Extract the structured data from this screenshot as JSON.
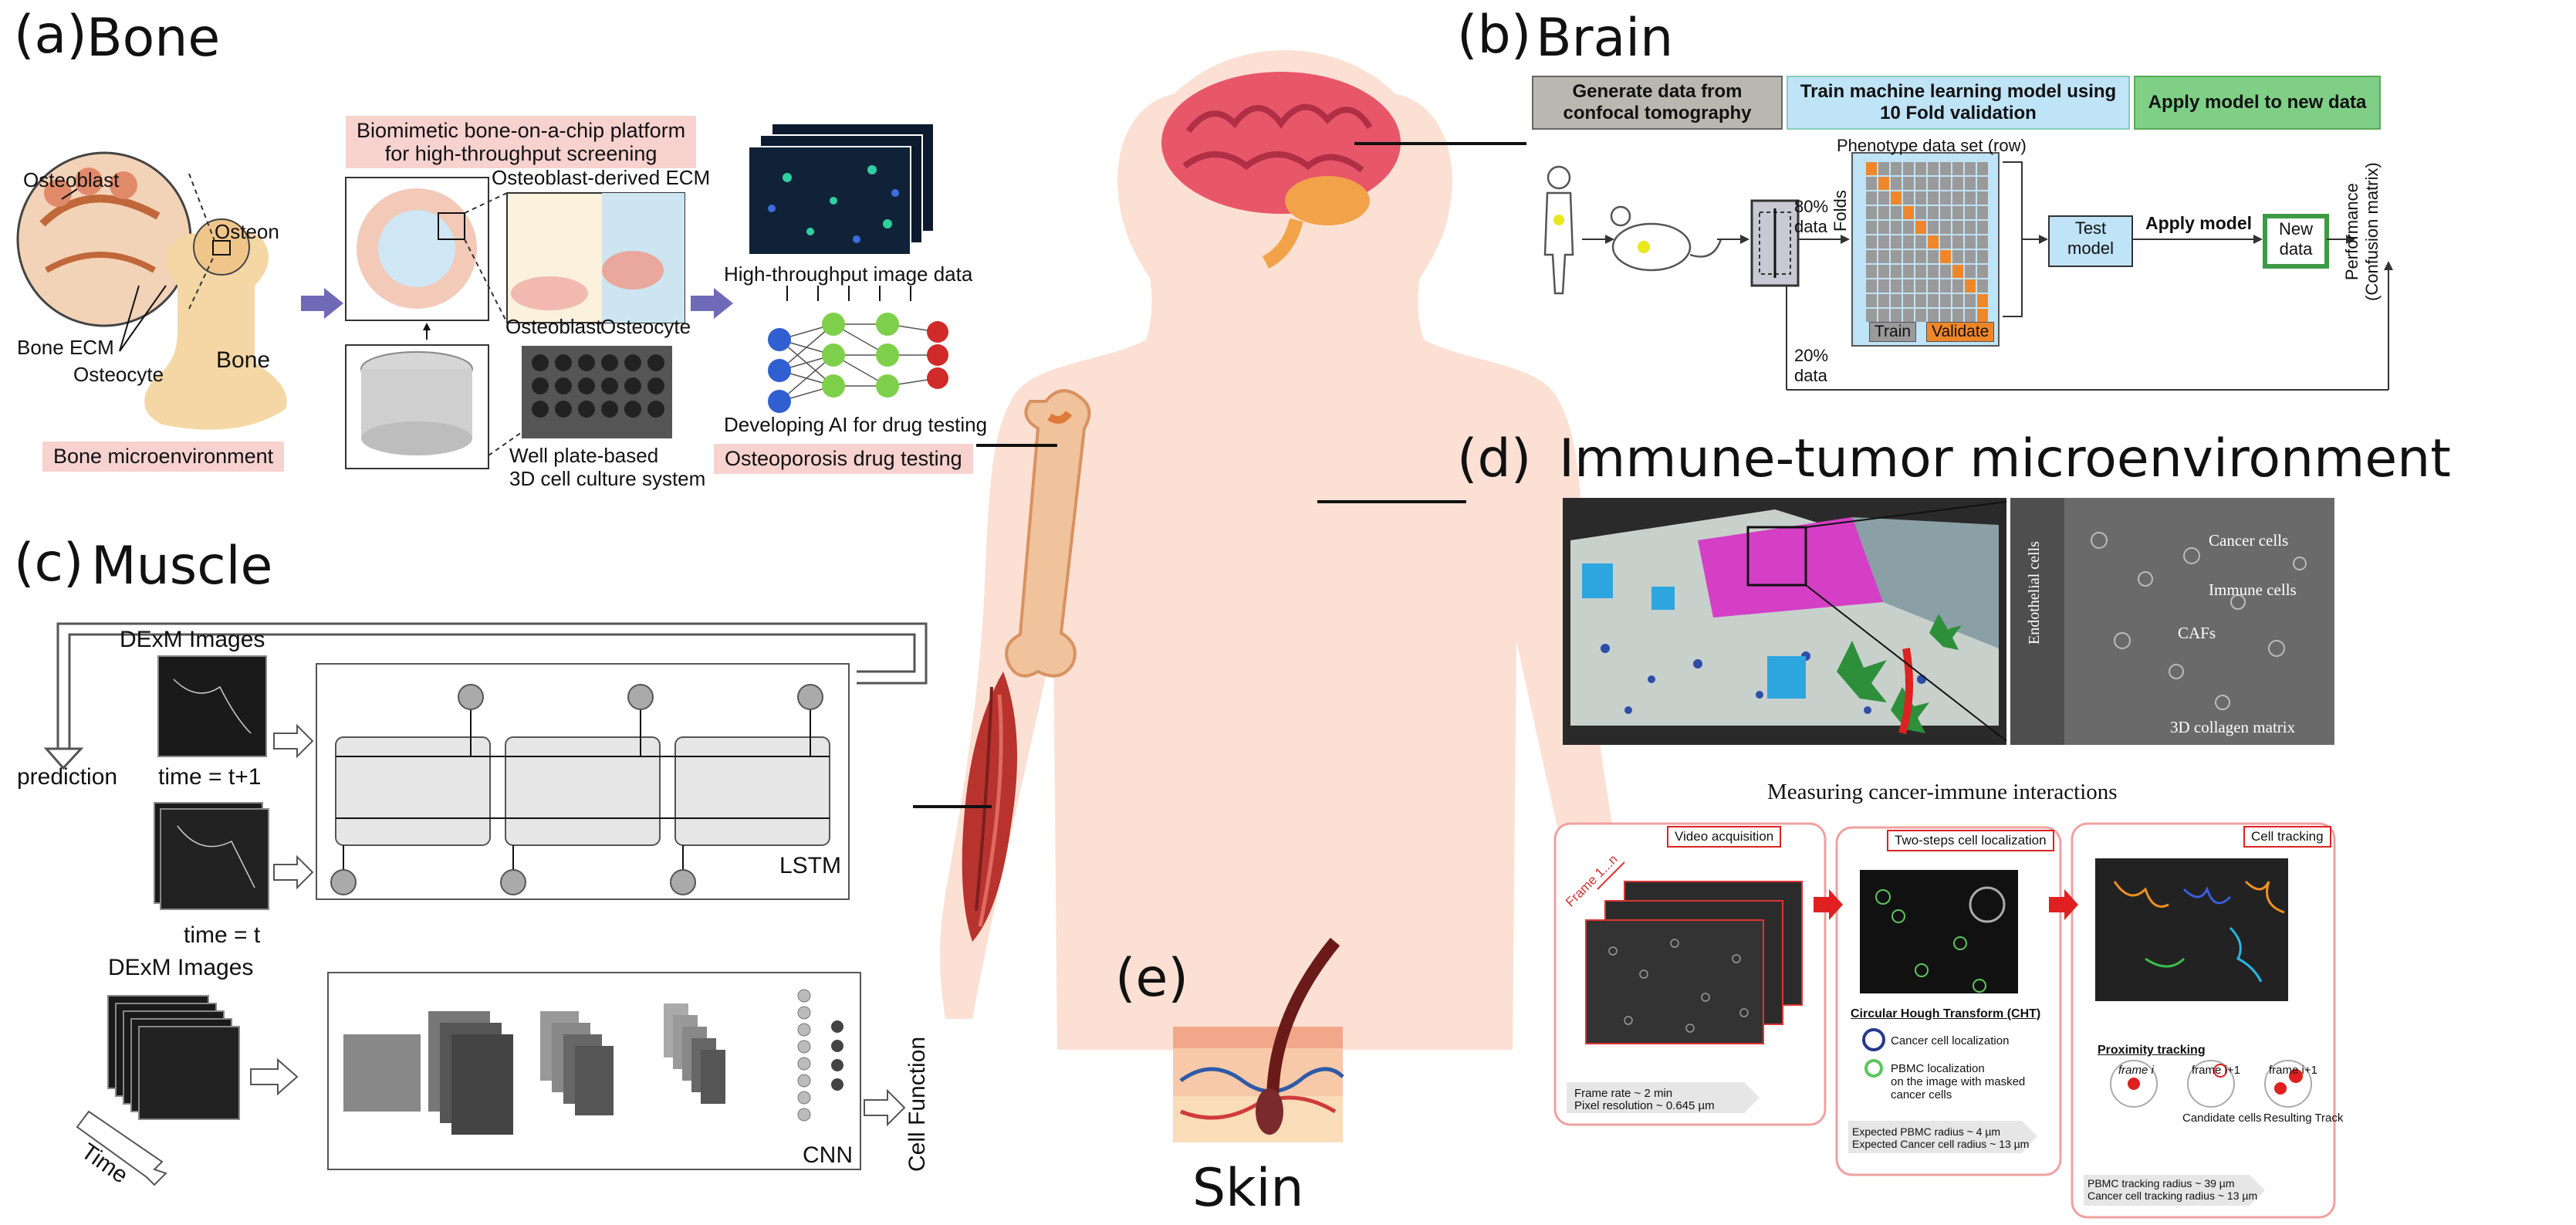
{
  "panels": {
    "a": {
      "letter": "(a)",
      "title": "Bone",
      "labels": {
        "osteoblast": "Osteoblast",
        "osteon": "Osteon",
        "bone_ecm": "Bone ECM",
        "osteocyte": "Osteocyte",
        "bone": "Bone",
        "platform_tag": "Biomimetic bone-on-a-chip platform\nfor high-throughput screening",
        "osteoblast_ecm": "Osteoblast-derived ECM",
        "osteoblast2": "Osteoblast",
        "osteocyte2": "Osteocyte",
        "well_plate": "Well plate-based\n3D cell culture system",
        "ht_image": "High-throughput image data",
        "developing_ai": "Developing AI for drug testing",
        "microenv_tag": "Bone microenvironment",
        "drug_tag": "Osteoporosis drug testing"
      }
    },
    "b": {
      "letter": "(b)",
      "title": "Brain",
      "headers": [
        "Generate data from confocal tomography",
        "Train machine learning model using 10 Fold validation",
        "Apply model to new data"
      ],
      "phenotype_label": "Phenotype data set (row)",
      "folds_label": "Folds",
      "split_80": "80%\ndata",
      "split_20": "20%\ndata",
      "train_label": "Train",
      "validate_label": "Validate",
      "test_model": "Test\nmodel",
      "apply_model": "Apply model",
      "new_data": "New\ndata",
      "performance": "Performance\n(Confusion matrix)"
    },
    "c": {
      "letter": "(c)",
      "title": "Muscle",
      "dexm_top": "DExM Images",
      "prediction": "prediction",
      "time_t1": "time = t+1",
      "time_t": "time = t",
      "lstm": "LSTM",
      "dexm_bottom": "DExM Images",
      "time": "Time",
      "cnn": "CNN",
      "cell_function": "Cell Function"
    },
    "d": {
      "letter": "(d)",
      "title": "Immune-tumor microenvironment",
      "micro_labels": [
        "Cancer cells",
        "Immune cells",
        "CAFs",
        "3D collagen matrix"
      ],
      "endothelial": "Endothelial cells",
      "measuring": "Measuring cancer-immune interactions",
      "frame_label": "Frame 1...n",
      "video_acq": "Video acquisition",
      "two_steps": "Two-steps cell localization",
      "cell_tracking": "Cell tracking",
      "frame_rate": "Frame rate ~ 2 min",
      "pixel_res": "Pixel resolution ~ 0.645 µm",
      "cht": "Circular Hough Transform (CHT)",
      "cancer_loc": "Cancer cell localization",
      "pbmc_loc": "PBMC localization\non the image with masked\ncancer cells",
      "exp_pbmc": "Expected PBMC radius ~ 4 µm",
      "exp_cancer": "Expected Cancer cell radius ~ 13 µm",
      "proximity": "Proximity tracking",
      "frame_i": "frame i",
      "frame_i1a": "frame i+1",
      "frame_i1b": "frame i+1",
      "candidate": "Candidate cells",
      "resulting": "Resulting Track",
      "pbmc_track": "PBMC tracking radius ~ 39 µm",
      "cancer_track": "Cancer cell tracking radius ~ 13 µm"
    },
    "e": {
      "letter": "(e)",
      "title": "Skin"
    }
  },
  "colors": {
    "body": "#fbe0d3",
    "brain": "#e8566a",
    "muscle": "#b8322e",
    "orange_cell": "#f0862a",
    "grid_cell": "#9a9a9a",
    "blue_header": "#bfe3f7",
    "green_header": "#7fcf86",
    "gray_header": "#b8b8b0",
    "red_accent": "#e02020"
  }
}
